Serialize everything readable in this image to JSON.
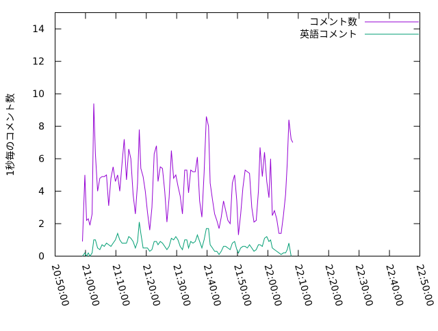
{
  "chart_data": {
    "type": "line",
    "title": "",
    "ylabel": "1秒毎のコメント数",
    "xlabel": "",
    "ylim": [
      0,
      15
    ],
    "yticks": [
      0,
      2,
      4,
      6,
      8,
      10,
      12,
      14
    ],
    "xlim": [
      "20:50:00",
      "22:50:00"
    ],
    "xticks": [
      "20:50:00",
      "21:00:00",
      "21:10:00",
      "21:20:00",
      "21:30:00",
      "21:40:00",
      "21:50:00",
      "22:00:00",
      "22:10:00",
      "22:20:00",
      "22:30:00",
      "22:40:00",
      "22:50:00"
    ],
    "grid": false,
    "legend_position": "top-right",
    "series": [
      {
        "name": "コメント数",
        "color": "#9400d3",
        "points": [
          [
            "20:59:00",
            0.9
          ],
          [
            "20:59:48",
            5.0
          ],
          [
            "21:00:21",
            2.2
          ],
          [
            "21:00:55",
            2.3
          ],
          [
            "21:01:27",
            1.9
          ],
          [
            "21:02:11",
            2.6
          ],
          [
            "21:02:43",
            9.4
          ],
          [
            "21:03:16",
            6.3
          ],
          [
            "21:03:59",
            4.0
          ],
          [
            "21:04:43",
            4.8
          ],
          [
            "21:05:27",
            4.9
          ],
          [
            "21:06:11",
            4.9
          ],
          [
            "21:06:55",
            5.0
          ],
          [
            "21:07:38",
            3.1
          ],
          [
            "21:08:22",
            4.8
          ],
          [
            "21:09:06",
            5.5
          ],
          [
            "21:09:50",
            4.6
          ],
          [
            "21:10:34",
            5.0
          ],
          [
            "21:11:17",
            4.0
          ],
          [
            "21:12:01",
            5.7
          ],
          [
            "21:12:45",
            7.2
          ],
          [
            "21:13:29",
            4.7
          ],
          [
            "21:14:13",
            6.6
          ],
          [
            "21:14:56",
            6.0
          ],
          [
            "21:15:40",
            3.8
          ],
          [
            "21:16:24",
            2.6
          ],
          [
            "21:17:08",
            4.5
          ],
          [
            "21:17:41",
            7.8
          ],
          [
            "21:18:13",
            5.4
          ],
          [
            "21:18:57",
            4.9
          ],
          [
            "21:19:41",
            4.0
          ],
          [
            "21:20:24",
            2.7
          ],
          [
            "21:21:08",
            1.6
          ],
          [
            "21:21:52",
            3.0
          ],
          [
            "21:22:36",
            6.3
          ],
          [
            "21:23:20",
            6.8
          ],
          [
            "21:23:52",
            4.6
          ],
          [
            "21:24:36",
            5.5
          ],
          [
            "21:25:20",
            5.4
          ],
          [
            "21:26:04",
            4.0
          ],
          [
            "21:26:47",
            2.1
          ],
          [
            "21:27:31",
            3.6
          ],
          [
            "21:28:15",
            6.5
          ],
          [
            "21:28:59",
            4.8
          ],
          [
            "21:29:43",
            5.0
          ],
          [
            "21:30:26",
            4.3
          ],
          [
            "21:31:10",
            3.7
          ],
          [
            "21:31:54",
            2.6
          ],
          [
            "21:32:38",
            5.3
          ],
          [
            "21:33:21",
            5.3
          ],
          [
            "21:33:54",
            3.9
          ],
          [
            "21:34:38",
            5.3
          ],
          [
            "21:35:22",
            5.2
          ],
          [
            "21:36:06",
            5.2
          ],
          [
            "21:36:49",
            6.1
          ],
          [
            "21:37:33",
            3.4
          ],
          [
            "21:38:17",
            2.4
          ],
          [
            "21:39:01",
            5.1
          ],
          [
            "21:39:45",
            8.6
          ],
          [
            "21:40:28",
            8.0
          ],
          [
            "21:41:01",
            4.5
          ],
          [
            "21:41:45",
            3.5
          ],
          [
            "21:42:29",
            2.6
          ],
          [
            "21:43:12",
            2.2
          ],
          [
            "21:43:56",
            1.7
          ],
          [
            "21:44:40",
            2.4
          ],
          [
            "21:45:24",
            3.4
          ],
          [
            "21:46:08",
            2.8
          ],
          [
            "21:46:51",
            2.2
          ],
          [
            "21:47:35",
            2.0
          ],
          [
            "21:48:19",
            4.5
          ],
          [
            "21:49:03",
            5.0
          ],
          [
            "21:49:46",
            3.4
          ],
          [
            "21:50:19",
            1.3
          ],
          [
            "21:51:03",
            2.6
          ],
          [
            "21:51:47",
            4.2
          ],
          [
            "21:52:31",
            5.3
          ],
          [
            "21:53:14",
            5.2
          ],
          [
            "21:53:58",
            5.1
          ],
          [
            "21:54:42",
            3.0
          ],
          [
            "21:55:26",
            2.1
          ],
          [
            "21:56:10",
            2.2
          ],
          [
            "21:56:53",
            4.0
          ],
          [
            "21:57:26",
            6.7
          ],
          [
            "21:58:10",
            4.9
          ],
          [
            "21:58:54",
            6.4
          ],
          [
            "21:59:38",
            4.6
          ],
          [
            "22:00:21",
            3.6
          ],
          [
            "22:00:54",
            6.0
          ],
          [
            "22:01:27",
            2.5
          ],
          [
            "22:02:10",
            2.8
          ],
          [
            "22:02:54",
            2.3
          ],
          [
            "22:03:38",
            1.4
          ],
          [
            "22:04:22",
            1.4
          ],
          [
            "22:05:06",
            2.5
          ],
          [
            "22:05:49",
            3.8
          ],
          [
            "22:06:22",
            5.7
          ],
          [
            "22:06:55",
            8.4
          ],
          [
            "22:07:39",
            7.2
          ],
          [
            "22:08:12",
            7.0
          ]
        ]
      },
      {
        "name": "英語コメント",
        "color": "#009e73",
        "points": [
          [
            "20:59:00",
            0.0
          ],
          [
            "20:59:48",
            0.2
          ],
          [
            "21:00:21",
            0.0
          ],
          [
            "21:00:55",
            0.2
          ],
          [
            "21:01:27",
            0.0
          ],
          [
            "21:02:11",
            0.2
          ],
          [
            "21:02:43",
            1.0
          ],
          [
            "21:03:16",
            1.0
          ],
          [
            "21:03:59",
            0.5
          ],
          [
            "21:04:43",
            0.4
          ],
          [
            "21:05:27",
            0.7
          ],
          [
            "21:06:11",
            0.6
          ],
          [
            "21:06:55",
            0.8
          ],
          [
            "21:07:38",
            0.7
          ],
          [
            "21:08:22",
            0.6
          ],
          [
            "21:09:06",
            0.8
          ],
          [
            "21:09:50",
            1.0
          ],
          [
            "21:10:34",
            1.4
          ],
          [
            "21:11:17",
            1.0
          ],
          [
            "21:12:01",
            0.8
          ],
          [
            "21:12:45",
            0.8
          ],
          [
            "21:13:29",
            0.8
          ],
          [
            "21:14:13",
            1.2
          ],
          [
            "21:14:56",
            1.1
          ],
          [
            "21:15:40",
            0.9
          ],
          [
            "21:16:24",
            0.5
          ],
          [
            "21:17:08",
            0.9
          ],
          [
            "21:17:41",
            2.1
          ],
          [
            "21:18:13",
            1.4
          ],
          [
            "21:18:57",
            0.5
          ],
          [
            "21:19:41",
            0.5
          ],
          [
            "21:20:24",
            0.5
          ],
          [
            "21:21:08",
            0.3
          ],
          [
            "21:21:52",
            0.4
          ],
          [
            "21:22:36",
            0.9
          ],
          [
            "21:23:20",
            0.9
          ],
          [
            "21:23:52",
            0.7
          ],
          [
            "21:24:36",
            0.9
          ],
          [
            "21:25:20",
            0.8
          ],
          [
            "21:26:04",
            0.6
          ],
          [
            "21:26:47",
            0.4
          ],
          [
            "21:27:31",
            0.6
          ],
          [
            "21:28:15",
            1.1
          ],
          [
            "21:28:59",
            1.0
          ],
          [
            "21:29:43",
            1.2
          ],
          [
            "21:30:26",
            1.0
          ],
          [
            "21:31:10",
            0.6
          ],
          [
            "21:31:54",
            0.4
          ],
          [
            "21:32:38",
            1.0
          ],
          [
            "21:33:21",
            1.0
          ],
          [
            "21:33:54",
            0.5
          ],
          [
            "21:34:38",
            0.9
          ],
          [
            "21:35:22",
            0.8
          ],
          [
            "21:36:06",
            0.9
          ],
          [
            "21:36:49",
            1.3
          ],
          [
            "21:37:33",
            0.9
          ],
          [
            "21:38:17",
            0.5
          ],
          [
            "21:39:01",
            1.0
          ],
          [
            "21:39:45",
            1.7
          ],
          [
            "21:40:28",
            1.7
          ],
          [
            "21:41:01",
            0.7
          ],
          [
            "21:41:45",
            0.5
          ],
          [
            "21:42:29",
            0.3
          ],
          [
            "21:43:12",
            0.3
          ],
          [
            "21:43:56",
            0.1
          ],
          [
            "21:44:40",
            0.3
          ],
          [
            "21:45:24",
            0.6
          ],
          [
            "21:46:08",
            0.6
          ],
          [
            "21:46:51",
            0.5
          ],
          [
            "21:47:35",
            0.4
          ],
          [
            "21:48:19",
            0.8
          ],
          [
            "21:49:03",
            0.9
          ],
          [
            "21:49:46",
            0.4
          ],
          [
            "21:50:19",
            0.2
          ],
          [
            "21:51:03",
            0.5
          ],
          [
            "21:51:47",
            0.6
          ],
          [
            "21:52:31",
            0.6
          ],
          [
            "21:53:14",
            0.5
          ],
          [
            "21:53:58",
            0.7
          ],
          [
            "21:54:42",
            0.5
          ],
          [
            "21:55:26",
            0.3
          ],
          [
            "21:56:10",
            0.4
          ],
          [
            "21:56:53",
            0.7
          ],
          [
            "21:57:26",
            0.7
          ],
          [
            "21:58:10",
            0.6
          ],
          [
            "21:58:54",
            1.1
          ],
          [
            "21:59:38",
            1.2
          ],
          [
            "22:00:21",
            0.9
          ],
          [
            "22:00:54",
            1.0
          ],
          [
            "22:01:27",
            0.5
          ],
          [
            "22:02:10",
            0.4
          ],
          [
            "22:02:54",
            0.3
          ],
          [
            "22:03:38",
            0.2
          ],
          [
            "22:04:22",
            0.1
          ],
          [
            "22:05:06",
            0.2
          ],
          [
            "22:05:49",
            0.2
          ],
          [
            "22:06:22",
            0.4
          ],
          [
            "22:06:55",
            0.8
          ],
          [
            "22:07:39",
            0.0
          ]
        ]
      }
    ]
  }
}
